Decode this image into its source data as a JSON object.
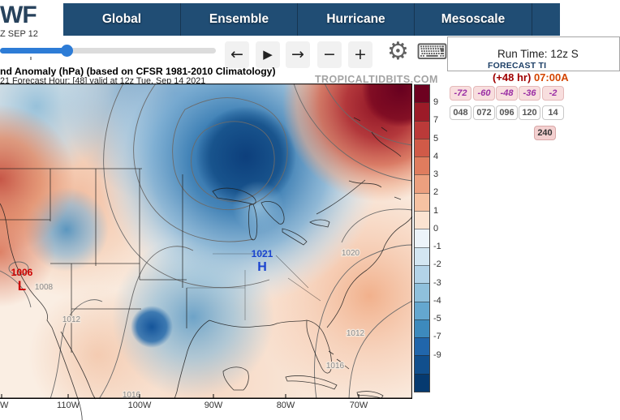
{
  "header": {
    "logo": "WF",
    "logo_sub": "Z SEP 12",
    "tabs": [
      "Global",
      "Ensemble",
      "Hurricane",
      "Mesoscale"
    ]
  },
  "controls": {
    "prev": "←",
    "play": "▶",
    "next": "→",
    "minus": "−",
    "plus": "+",
    "gear_icon": "⚙",
    "keyboard_icon": "⌨",
    "run_time": "Run Time: 12z S",
    "slider_percent": 31
  },
  "forecast": {
    "panel_label": "FORECAST TI",
    "hour_label": "(+48 hr)",
    "time_label": "07:00A",
    "negative_hours": [
      "-72",
      "-60",
      "-48",
      "-36",
      "-2"
    ],
    "positive_hours": [
      "048",
      "072",
      "096",
      "120",
      "14"
    ],
    "extra_hour": "240"
  },
  "map": {
    "title": "nd Anomaly (hPa) (based on CFSR 1981-2010 Climatology)",
    "subtitle": "21   Forecast Hour: [48]   valid at 12z Tue, Sep 14 2021",
    "watermark": "TROPICALTIDBITS.COM",
    "low": {
      "value": "1006",
      "letter": "L"
    },
    "high": {
      "value": "1021",
      "letter": "H"
    },
    "contour_labels": {
      "c1008": "1008",
      "c1012a": "1012",
      "c1012b": "1012",
      "c1016a": "1016",
      "c1016b": "1016",
      "c1020": "1020"
    },
    "x_axis": [
      "W",
      "110W",
      "100W",
      "90W",
      "80W",
      "70W"
    ]
  },
  "colorbar": {
    "labels": [
      "9",
      "7",
      "5",
      "4",
      "3",
      "2",
      "1",
      "0",
      "-1",
      "-2",
      "-3",
      "-4",
      "-5",
      "-7",
      "-9"
    ],
    "segments": [
      "#6d0120",
      "#9c1b28",
      "#bb3a39",
      "#d05a48",
      "#df7c5e",
      "#eca07f",
      "#f6c2a2",
      "#fbe3d1",
      "#edf4fa",
      "#d3e6f2",
      "#b3d3e8",
      "#8fc0dc",
      "#64a7cf",
      "#3d8abd",
      "#2166ab",
      "#114f8d",
      "#063a70"
    ]
  },
  "colors": {
    "navbar": "#204d74",
    "accent_blue": "#2d7cd6",
    "low_red": "#cc0000",
    "high_blue": "#1a43cf"
  }
}
